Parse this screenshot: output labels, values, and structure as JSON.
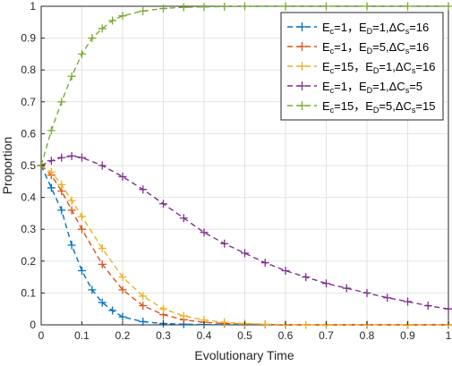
{
  "chart_data": {
    "type": "line",
    "xlabel": "Evolutionary Time",
    "ylabel": "Proportion",
    "xlim": [
      0,
      1
    ],
    "ylim": [
      0,
      1
    ],
    "xticks": [
      "0",
      "0.1",
      "0.2",
      "0.3",
      "0.4",
      "0.5",
      "0.6",
      "0.7",
      "0.8",
      "0.9",
      "1"
    ],
    "yticks": [
      "0",
      "0.1",
      "0.2",
      "0.3",
      "0.4",
      "0.5",
      "0.6",
      "0.7",
      "0.8",
      "0.9",
      "1"
    ],
    "grid": true,
    "legend_position": "top-right",
    "marker": "+",
    "line_style": "dashed",
    "series": [
      {
        "name": "Ec=1，ED=1,ΔCs=16",
        "legend": {
          "p1": "E",
          "s1": "c",
          "p2": "=1，E",
          "s2": "D",
          "p3": "=1,ΔC",
          "s3": "s",
          "p4": "=16"
        },
        "color": "#0072BD",
        "x": [
          0,
          0.025,
          0.05,
          0.075,
          0.1,
          0.125,
          0.15,
          0.175,
          0.2,
          0.25,
          0.3,
          0.35,
          0.4,
          0.5,
          0.6,
          0.7,
          0.8,
          0.9,
          1.0
        ],
        "y": [
          0.5,
          0.43,
          0.36,
          0.25,
          0.17,
          0.11,
          0.07,
          0.045,
          0.025,
          0.01,
          0.004,
          0.002,
          0.001,
          0,
          0,
          0,
          0,
          0,
          0
        ]
      },
      {
        "name": "Ec=1，ED=5,ΔCs=16",
        "legend": {
          "p1": "E",
          "s1": "c",
          "p2": "=1，E",
          "s2": "D",
          "p3": "=5,ΔC",
          "s3": "s",
          "p4": "=16"
        },
        "color": "#D95319",
        "x": [
          0,
          0.025,
          0.05,
          0.075,
          0.1,
          0.15,
          0.2,
          0.25,
          0.3,
          0.35,
          0.4,
          0.45,
          0.5,
          0.55,
          0.6,
          0.7,
          0.8,
          0.9,
          1.0
        ],
        "y": [
          0.5,
          0.47,
          0.42,
          0.36,
          0.3,
          0.19,
          0.11,
          0.06,
          0.032,
          0.016,
          0.008,
          0.004,
          0.002,
          0.001,
          0,
          0,
          0,
          0,
          0
        ]
      },
      {
        "name": "Ec=15，ED=1,ΔCs=16",
        "legend": {
          "p1": "E",
          "s1": "c",
          "p2": "=15，E",
          "s2": "D",
          "p3": "=1,ΔC",
          "s3": "s",
          "p4": "=16"
        },
        "color": "#EDB120",
        "x": [
          0,
          0.025,
          0.05,
          0.075,
          0.1,
          0.15,
          0.2,
          0.25,
          0.3,
          0.35,
          0.4,
          0.45,
          0.5,
          0.55,
          0.6,
          0.65,
          0.7,
          0.8,
          0.9,
          1.0
        ],
        "y": [
          0.5,
          0.48,
          0.44,
          0.39,
          0.34,
          0.24,
          0.15,
          0.09,
          0.05,
          0.028,
          0.015,
          0.008,
          0.004,
          0.002,
          0.001,
          0,
          0,
          0,
          0,
          0
        ]
      },
      {
        "name": "Ec=1，ED=1,ΔCs=5",
        "legend": {
          "p1": "E",
          "s1": "c",
          "p2": "=1，E",
          "s2": "D",
          "p3": "=1,ΔC",
          "s3": "s",
          "p4": "=5"
        },
        "color": "#7E2F8E",
        "x": [
          0,
          0.025,
          0.05,
          0.075,
          0.1,
          0.15,
          0.2,
          0.25,
          0.3,
          0.35,
          0.4,
          0.45,
          0.5,
          0.55,
          0.6,
          0.65,
          0.7,
          0.75,
          0.8,
          0.85,
          0.9,
          0.95,
          1.0
        ],
        "y": [
          0.5,
          0.515,
          0.525,
          0.53,
          0.525,
          0.5,
          0.465,
          0.425,
          0.38,
          0.335,
          0.29,
          0.255,
          0.225,
          0.195,
          0.17,
          0.15,
          0.13,
          0.115,
          0.1,
          0.085,
          0.073,
          0.06,
          0.05
        ]
      },
      {
        "name": "Ec=15，ED=5,ΔCs=15",
        "legend": {
          "p1": "E",
          "s1": "c",
          "p2": "=15，E",
          "s2": "D",
          "p3": "=5,ΔC",
          "s3": "s",
          "p4": "=15"
        },
        "color": "#77AC30",
        "x": [
          0,
          0.025,
          0.05,
          0.075,
          0.1,
          0.125,
          0.15,
          0.175,
          0.2,
          0.25,
          0.3,
          0.35,
          0.4,
          0.45,
          0.5,
          0.6,
          0.7,
          0.8,
          0.9,
          1.0
        ],
        "y": [
          0.5,
          0.61,
          0.7,
          0.78,
          0.85,
          0.9,
          0.93,
          0.955,
          0.97,
          0.985,
          0.993,
          0.997,
          0.998,
          0.999,
          1,
          1,
          1,
          1,
          1,
          1
        ]
      }
    ]
  }
}
